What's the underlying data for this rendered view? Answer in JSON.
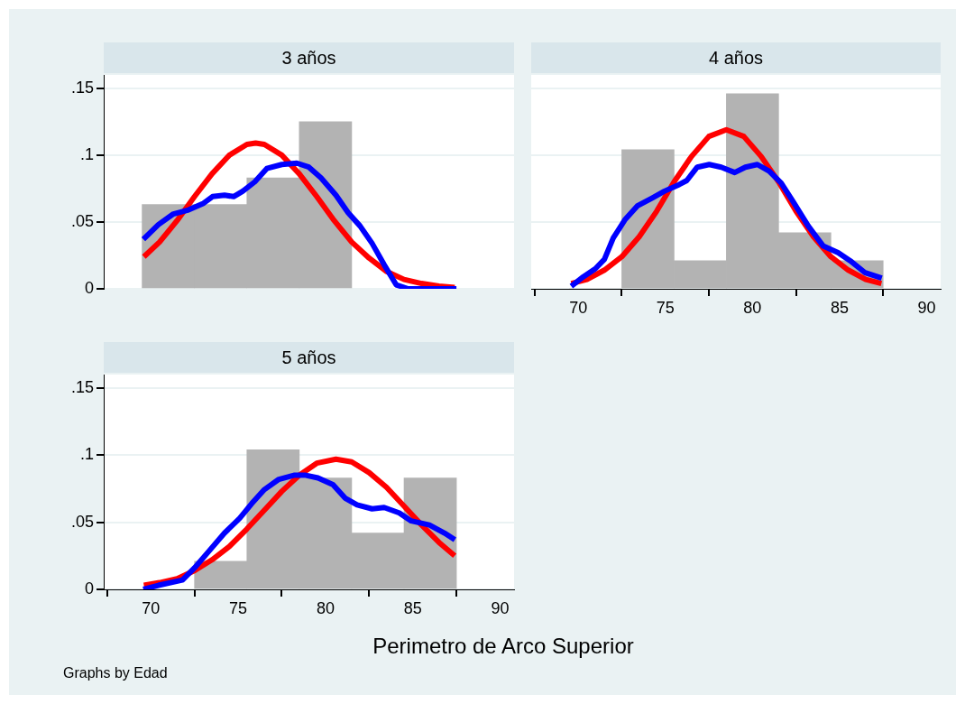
{
  "chart_data": [
    {
      "type": "histogram",
      "title": "3 años",
      "bins": [
        69.5,
        72.5,
        75.5,
        78.5,
        81.5
      ],
      "values": [
        0.063,
        0.063,
        0.083,
        0.125
      ],
      "color": "#b3b3b3",
      "series": [
        {
          "type": "line",
          "color": "#0000ff",
          "x": [
            69.57,
            70.43,
            71.29,
            72.16,
            73.02,
            73.53,
            74.22,
            74.74,
            75.26,
            75.95,
            76.64,
            77.5,
            78.36,
            79.05,
            79.74,
            80.6,
            81.29,
            81.98,
            82.67,
            83.36,
            84.05,
            84.74,
            87.5
          ],
          "values": [
            0.037,
            0.048,
            0.056,
            0.059,
            0.064,
            0.069,
            0.07,
            0.069,
            0.073,
            0.08,
            0.09,
            0.093,
            0.094,
            0.091,
            0.083,
            0.07,
            0.057,
            0.047,
            0.034,
            0.018,
            0.003,
            0,
            0
          ]
        },
        {
          "type": "line",
          "color": "#ff0000",
          "x": [
            69.6,
            70.5,
            71.5,
            72.5,
            73.5,
            74.5,
            75.5,
            76,
            76.5,
            77.5,
            78.5,
            79.5,
            80.5,
            81.5,
            82.5,
            83.5,
            84.5,
            85.5,
            86.5,
            87.4
          ],
          "values": [
            0.024,
            0.035,
            0.051,
            0.069,
            0.086,
            0.1,
            0.108,
            0.109,
            0.108,
            0.1,
            0.086,
            0.069,
            0.051,
            0.035,
            0.023,
            0.013,
            0.007,
            0.004,
            0.002,
            0.001
          ]
        }
      ],
      "xlim": [
        67.3,
        90.8
      ],
      "ylim": [
        0,
        0.16
      ],
      "xticks": [
        70,
        75,
        80,
        85,
        90
      ],
      "yticks": [
        {
          "value": 0,
          "label": "0"
        },
        {
          "value": 0.05,
          "label": ".05"
        },
        {
          "value": 0.1,
          "label": ".1"
        },
        {
          "value": 0.15,
          "label": ".15"
        }
      ],
      "grid": "y",
      "tick_labels": "y",
      "marker": "none",
      "legend": false
    },
    {
      "type": "histogram",
      "title": "4 años",
      "bins": [
        69.5,
        72.5,
        75.5,
        78.5,
        81.5,
        84.5,
        87.5
      ],
      "values": [
        0,
        0.104,
        0.021,
        0.146,
        0.042,
        0.021
      ],
      "color": "#b3b3b3",
      "series": [
        {
          "type": "line",
          "color": "#0000ff",
          "x": [
            69.6,
            70.29,
            70.98,
            71.5,
            72.01,
            72.7,
            73.39,
            74.25,
            74.94,
            75.8,
            76.23,
            76.83,
            77.52,
            78.21,
            78.98,
            79.59,
            80.28,
            80.96,
            81.65,
            82.34,
            83.2,
            84.06,
            84.92,
            85.61,
            86.47,
            87.42
          ],
          "values": [
            0.002,
            0.009,
            0.015,
            0.022,
            0.038,
            0.052,
            0.062,
            0.068,
            0.073,
            0.078,
            0.081,
            0.091,
            0.093,
            0.091,
            0.087,
            0.091,
            0.093,
            0.088,
            0.079,
            0.065,
            0.047,
            0.032,
            0.027,
            0.021,
            0.012,
            0.008
          ]
        },
        {
          "type": "line",
          "color": "#ff0000",
          "x": [
            69.6,
            70.5,
            71.5,
            72.5,
            73.5,
            74.5,
            75.5,
            76.5,
            77.5,
            78.5,
            79.5,
            80.5,
            81.5,
            82.5,
            83.5,
            84.5,
            85.5,
            86.5,
            87.4
          ],
          "values": [
            0.004,
            0.007,
            0.014,
            0.024,
            0.039,
            0.058,
            0.08,
            0.099,
            0.114,
            0.119,
            0.114,
            0.099,
            0.08,
            0.058,
            0.039,
            0.024,
            0.014,
            0.007,
            0.004
          ]
        }
      ],
      "xlim": [
        67.3,
        90.8
      ],
      "ylim": [
        0,
        0.16
      ],
      "xticks": [
        70,
        75,
        80,
        85,
        90
      ],
      "yticks": [
        0,
        0.05,
        0.1,
        0.15
      ],
      "grid": "y",
      "tick_labels": "x",
      "marker": "none",
      "legend": false
    },
    {
      "type": "histogram",
      "title": "5 años",
      "xlabel": "Perimetro de Arco Superior",
      "annotations": [
        "Graphs by Edad"
      ],
      "bins": [
        72.5,
        75.5,
        78.5,
        81.5,
        84.5,
        87.5
      ],
      "values": [
        0.021,
        0.104,
        0.083,
        0.042,
        0.083
      ],
      "color": "#b3b3b3",
      "series": [
        {
          "type": "line",
          "color": "#0000ff",
          "x": [
            69.57,
            70.43,
            71.81,
            72.5,
            73.36,
            74.22,
            75.09,
            75.78,
            76.47,
            77.33,
            78.19,
            78.88,
            79.57,
            80.43,
            81.12,
            81.81,
            82.67,
            83.36,
            84.22,
            84.91,
            85.95,
            86.81,
            87.41
          ],
          "values": [
            0,
            0.003,
            0.007,
            0.016,
            0.029,
            0.042,
            0.053,
            0.064,
            0.074,
            0.082,
            0.085,
            0.085,
            0.083,
            0.078,
            0.068,
            0.063,
            0.06,
            0.061,
            0.057,
            0.051,
            0.048,
            0.042,
            0.037
          ]
        },
        {
          "type": "line",
          "color": "#ff0000",
          "x": [
            69.6,
            70.5,
            71.5,
            72.5,
            73.5,
            74.5,
            75.5,
            76.5,
            77.5,
            78.5,
            79.5,
            80.6,
            81.5,
            82.5,
            83.5,
            84.5,
            85.5,
            86.5,
            87.4
          ],
          "values": [
            0.003,
            0.005,
            0.008,
            0.014,
            0.022,
            0.032,
            0.045,
            0.059,
            0.073,
            0.085,
            0.094,
            0.097,
            0.095,
            0.087,
            0.076,
            0.062,
            0.048,
            0.035,
            0.025
          ]
        }
      ],
      "xlim": [
        67.3,
        90.8
      ],
      "ylim": [
        0,
        0.16
      ],
      "xticks": [
        70,
        75,
        80,
        85,
        90
      ],
      "yticks": [
        {
          "value": 0,
          "label": "0"
        },
        {
          "value": 0.05,
          "label": ".05"
        },
        {
          "value": 0.1,
          "label": ".1"
        },
        {
          "value": 0.15,
          "label": ".15"
        }
      ],
      "grid": "y",
      "marker": "none",
      "legend": false
    }
  ]
}
